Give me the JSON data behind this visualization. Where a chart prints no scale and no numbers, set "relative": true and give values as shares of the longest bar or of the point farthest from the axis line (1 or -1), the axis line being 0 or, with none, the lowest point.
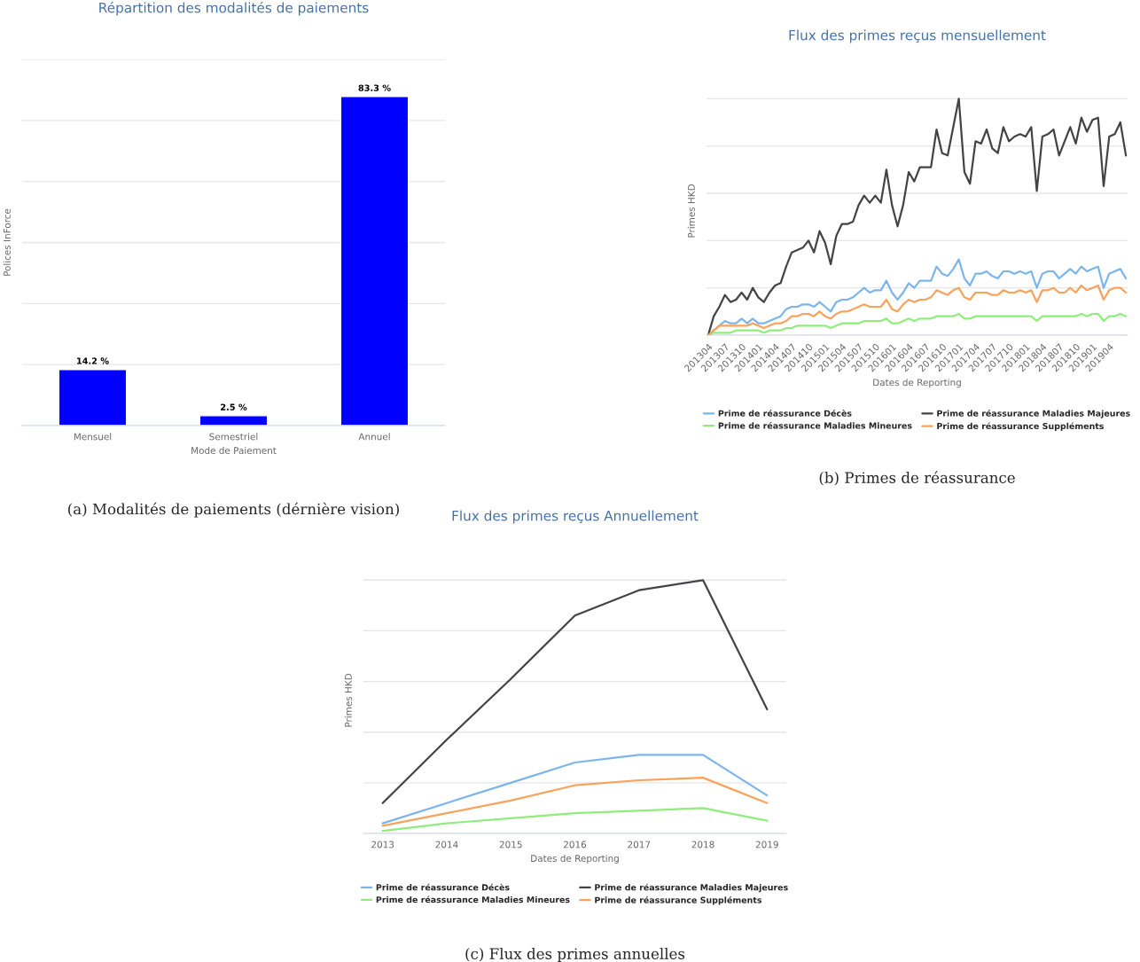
{
  "chart_data": [
    {
      "type": "bar",
      "title": "Répartition des modalités de paiements",
      "xlabel": "Mode de Paiement",
      "ylabel": "Polices InForce",
      "categories": [
        "Mensuel",
        "Semestriel",
        "Annuel"
      ],
      "values": [
        14.2,
        2.5,
        83.3
      ],
      "color": "#0000ff",
      "value_labels": [
        "14.2 %",
        "2.5 %",
        "83.3 %"
      ],
      "ylim": [
        0,
        92.7
      ],
      "yticks": [
        {
          "value": 0,
          "label": null
        },
        {
          "value": 15.45,
          "label": null
        },
        {
          "value": 30.9,
          "label": null
        },
        {
          "value": 46.35,
          "label": null
        },
        {
          "value": 61.8,
          "label": null
        },
        {
          "value": 77.25,
          "label": null
        },
        {
          "value": 92.7,
          "label": null
        }
      ],
      "tick_labels": "x",
      "grid": "y",
      "annotations": [
        "(a) Modalités de paiements (dérnière vision)"
      ]
    },
    {
      "type": "line",
      "title": "Flux des primes reçus mensuellement",
      "xlabel": "Dates de Reporting",
      "ylabel": "Primes HKD",
      "relative": true,
      "grid": "y",
      "legend": "bottom",
      "marker": "none",
      "line_style": "solid",
      "categories": [
        "201304",
        null,
        null,
        "201307",
        null,
        null,
        "201310",
        null,
        null,
        "201401",
        null,
        null,
        "201404",
        null,
        null,
        "201407",
        null,
        null,
        "201410",
        null,
        null,
        "201501",
        null,
        null,
        "201504",
        null,
        null,
        "201507",
        null,
        null,
        "201510",
        null,
        null,
        "201601",
        null,
        null,
        "201604",
        null,
        null,
        "201607",
        null,
        null,
        "201610",
        null,
        null,
        "201701",
        null,
        null,
        "201704",
        null,
        null,
        "201707",
        null,
        null,
        "201710",
        null,
        null,
        "201801",
        null,
        null,
        "201804",
        null,
        null,
        "201807",
        null,
        null,
        "201810",
        null,
        null,
        "201901",
        null,
        null,
        "201904",
        null,
        null,
        null
      ],
      "series": [
        {
          "name": "Prime de réassurance Décès",
          "color": "#7cb5ec",
          "values": [
            0,
            0.02,
            0.04,
            0.06,
            0.05,
            0.05,
            0.07,
            0.05,
            0.07,
            0.05,
            0.05,
            0.06,
            0.07,
            0.08,
            0.11,
            0.12,
            0.12,
            0.13,
            0.13,
            0.12,
            0.14,
            0.12,
            0.1,
            0.14,
            0.15,
            0.15,
            0.16,
            0.18,
            0.2,
            0.18,
            0.19,
            0.19,
            0.23,
            0.18,
            0.15,
            0.18,
            0.22,
            0.2,
            0.23,
            0.23,
            0.23,
            0.29,
            0.26,
            0.25,
            0.28,
            0.32,
            0.24,
            0.21,
            0.26,
            0.26,
            0.27,
            0.25,
            0.24,
            0.27,
            0.27,
            0.26,
            0.27,
            0.26,
            0.27,
            0.2,
            0.26,
            0.27,
            0.27,
            0.24,
            0.26,
            0.28,
            0.26,
            0.29,
            0.27,
            0.28,
            0.29,
            0.2,
            0.26,
            0.27,
            0.28,
            0.24
          ]
        },
        {
          "name": "Prime de réassurance Maladies Majeures",
          "color": "#434348",
          "values": [
            0,
            0.08,
            0.12,
            0.17,
            0.14,
            0.15,
            0.18,
            0.15,
            0.2,
            0.16,
            0.14,
            0.18,
            0.21,
            0.22,
            0.29,
            0.35,
            0.36,
            0.37,
            0.4,
            0.35,
            0.44,
            0.39,
            0.3,
            0.42,
            0.47,
            0.47,
            0.48,
            0.55,
            0.59,
            0.56,
            0.59,
            0.56,
            0.7,
            0.55,
            0.46,
            0.55,
            0.69,
            0.65,
            0.71,
            0.71,
            0.71,
            0.87,
            0.77,
            0.76,
            0.88,
            1,
            0.69,
            0.64,
            0.82,
            0.81,
            0.87,
            0.79,
            0.77,
            0.88,
            0.82,
            0.84,
            0.85,
            0.84,
            0.88,
            0.61,
            0.84,
            0.85,
            0.87,
            0.76,
            0.82,
            0.88,
            0.81,
            0.92,
            0.86,
            0.91,
            0.92,
            0.63,
            0.84,
            0.85,
            0.9,
            0.76
          ]
        },
        {
          "name": "Prime de réassurance Maladies Mineures",
          "color": "#90ed7d",
          "values": [
            0,
            0.01,
            0.01,
            0.01,
            0.01,
            0.02,
            0.02,
            0.02,
            0.02,
            0.02,
            0.01,
            0.02,
            0.02,
            0.02,
            0.03,
            0.03,
            0.04,
            0.04,
            0.04,
            0.04,
            0.04,
            0.04,
            0.03,
            0.04,
            0.05,
            0.05,
            0.05,
            0.05,
            0.06,
            0.06,
            0.06,
            0.06,
            0.07,
            0.05,
            0.05,
            0.06,
            0.07,
            0.06,
            0.07,
            0.07,
            0.07,
            0.08,
            0.08,
            0.08,
            0.08,
            0.09,
            0.07,
            0.07,
            0.08,
            0.08,
            0.08,
            0.08,
            0.08,
            0.08,
            0.08,
            0.08,
            0.08,
            0.08,
            0.08,
            0.06,
            0.08,
            0.08,
            0.08,
            0.08,
            0.08,
            0.08,
            0.08,
            0.09,
            0.08,
            0.09,
            0.09,
            0.06,
            0.08,
            0.08,
            0.09,
            0.08
          ]
        },
        {
          "name": "Prime de réassurance Suppléments",
          "color": "#f7a35c",
          "values": [
            0,
            0.02,
            0.04,
            0.04,
            0.04,
            0.04,
            0.04,
            0.04,
            0.05,
            0.04,
            0.03,
            0.04,
            0.05,
            0.05,
            0.06,
            0.08,
            0.08,
            0.09,
            0.09,
            0.08,
            0.1,
            0.08,
            0.07,
            0.09,
            0.1,
            0.1,
            0.11,
            0.12,
            0.13,
            0.12,
            0.12,
            0.12,
            0.15,
            0.11,
            0.1,
            0.13,
            0.15,
            0.14,
            0.15,
            0.15,
            0.16,
            0.19,
            0.18,
            0.17,
            0.19,
            0.2,
            0.16,
            0.15,
            0.18,
            0.18,
            0.18,
            0.17,
            0.17,
            0.19,
            0.18,
            0.18,
            0.19,
            0.18,
            0.19,
            0.14,
            0.19,
            0.19,
            0.2,
            0.18,
            0.18,
            0.2,
            0.18,
            0.21,
            0.19,
            0.2,
            0.21,
            0.15,
            0.19,
            0.2,
            0.2,
            0.18
          ]
        }
      ],
      "annotations": [
        "(b) Primes de réassurance"
      ]
    },
    {
      "type": "line",
      "title": "Flux des primes reçus Annuellement",
      "xlabel": "Dates de Reporting",
      "ylabel": "Primes HKD",
      "relative": true,
      "grid": "y",
      "legend": "bottom",
      "marker": "none",
      "line_style": "solid",
      "categories": [
        "2013",
        "2014",
        "2015",
        "2016",
        "2017",
        "2018",
        "2019"
      ],
      "series": [
        {
          "name": "Prime de réassurance Décès",
          "color": "#7cb5ec",
          "values": [
            0.04,
            0.12,
            0.2,
            0.28,
            0.31,
            0.31,
            0.15
          ]
        },
        {
          "name": "Prime de réassurance Maladies Majeures",
          "color": "#434348",
          "values": [
            0.12,
            0.37,
            0.61,
            0.86,
            0.96,
            1,
            0.49
          ]
        },
        {
          "name": "Prime de réassurance Maladies Mineures",
          "color": "#90ed7d",
          "values": [
            0.01,
            0.04,
            0.06,
            0.08,
            0.09,
            0.1,
            0.05
          ]
        },
        {
          "name": "Prime de réassurance Suppléments",
          "color": "#f7a35c",
          "values": [
            0.03,
            0.08,
            0.13,
            0.19,
            0.21,
            0.22,
            0.12
          ]
        }
      ],
      "annotations": [
        "(c) Flux des primes annuelles"
      ]
    }
  ]
}
